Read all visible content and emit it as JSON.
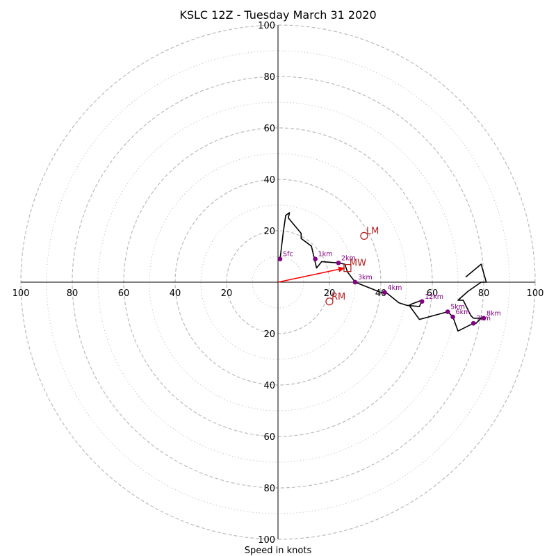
{
  "title": "KSLC 12Z - Tuesday March 31 2020",
  "xlabel": "Speed in knots",
  "chart_data": {
    "type": "hodograph",
    "title": "KSLC 12Z - Tuesday March 31 2020",
    "xlabel": "Speed in knots",
    "range": 100,
    "rings_major": [
      20,
      40,
      60,
      80,
      100
    ],
    "rings_minor": [
      10,
      30,
      50,
      70,
      90
    ],
    "tick_labels": {
      "x": [
        "100",
        "80",
        "60",
        "40",
        "20",
        "20",
        "40",
        "60",
        "80",
        "100"
      ],
      "y_top": [
        "100",
        "80",
        "60",
        "40",
        "20"
      ],
      "y_bottom": [
        "20",
        "40",
        "60",
        "80",
        "100"
      ]
    },
    "trace": [
      [
        0.8,
        9
      ],
      [
        2,
        19
      ],
      [
        3,
        26
      ],
      [
        4.5,
        27
      ],
      [
        4,
        25
      ],
      [
        9,
        19
      ],
      [
        9,
        17
      ],
      [
        13,
        14
      ],
      [
        15,
        5.5
      ],
      [
        17,
        8
      ],
      [
        23.5,
        7.5
      ],
      [
        26,
        7
      ],
      [
        27,
        4
      ],
      [
        30,
        0
      ],
      [
        40,
        -4
      ],
      [
        42,
        -4
      ],
      [
        47,
        -8
      ],
      [
        50,
        -9
      ],
      [
        55,
        -9.5
      ],
      [
        56,
        -7
      ],
      [
        52,
        -8.5
      ],
      [
        51,
        -9
      ],
      [
        55,
        -14.5
      ],
      [
        66,
        -11.5
      ],
      [
        68,
        -13.5
      ],
      [
        70,
        -19
      ],
      [
        76,
        -16
      ],
      [
        77,
        -16
      ],
      [
        79,
        -14
      ],
      [
        80,
        -14
      ],
      [
        76,
        -14
      ],
      [
        75,
        -13
      ],
      [
        72,
        -7
      ],
      [
        70,
        -7
      ],
      [
        74,
        -3.5
      ],
      [
        79,
        0
      ],
      [
        81,
        0
      ],
      [
        79,
        7
      ],
      [
        73,
        2
      ]
    ],
    "height_points": [
      {
        "label": "Sfc",
        "u": 0.8,
        "v": 9
      },
      {
        "label": "1km",
        "u": 14.5,
        "v": 9
      },
      {
        "label": "2km",
        "u": 23.5,
        "v": 7.5
      },
      {
        "label": "3km",
        "u": 30,
        "v": 0
      },
      {
        "label": "4km",
        "u": 41.5,
        "v": -4
      },
      {
        "label": "12km",
        "u": 56,
        "v": -7.5
      },
      {
        "label": "5km",
        "u": 66,
        "v": -11.5
      },
      {
        "label": "6km",
        "u": 68,
        "v": -13.5
      },
      {
        "label": "7km",
        "u": 76,
        "v": -16
      },
      {
        "label": "8km",
        "u": 80,
        "v": -14
      }
    ],
    "motion_markers": [
      {
        "label": "LM",
        "shape": "circle",
        "u": 33.5,
        "v": 18
      },
      {
        "label": "MW",
        "shape": "square",
        "u": 27,
        "v": 5.5
      },
      {
        "label": "RM",
        "shape": "circle",
        "u": 20,
        "v": -7.5
      }
    ],
    "storm_motion_vector": {
      "u": 26,
      "v": 5.5
    },
    "colors": {
      "trace": "#000000",
      "points": "#800080",
      "markers": "#b22222",
      "vector": "#ff0000",
      "rings": "#bbbbbb"
    }
  }
}
